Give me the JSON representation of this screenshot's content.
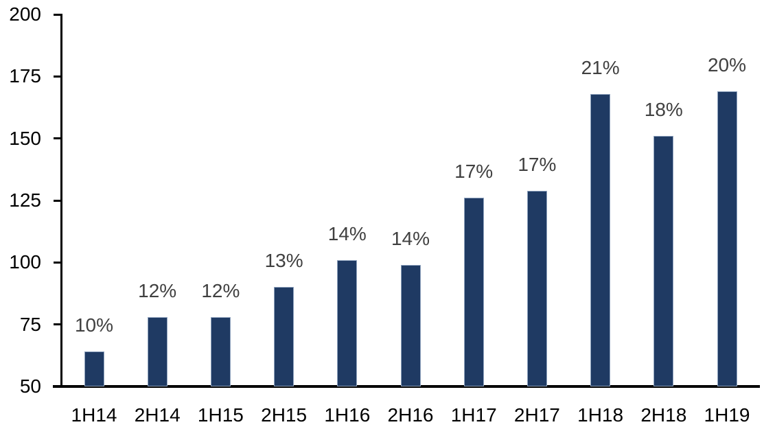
{
  "chart_data": {
    "type": "bar",
    "title": "",
    "xlabel": "",
    "ylabel": "",
    "categories": [
      "1H14",
      "2H14",
      "1H15",
      "2H15",
      "1H16",
      "2H16",
      "1H17",
      "2H17",
      "1H18",
      "2H18",
      "1H19"
    ],
    "values": [
      64,
      78,
      78,
      90,
      101,
      99,
      126,
      129,
      168,
      151,
      169
    ],
    "bar_labels": [
      "10%",
      "12%",
      "12%",
      "13%",
      "14%",
      "14%",
      "17%",
      "17%",
      "21%",
      "18%",
      "20%"
    ],
    "ylim": [
      50,
      200
    ],
    "yticks": [
      50,
      75,
      100,
      125,
      150,
      175,
      200
    ],
    "grid": false,
    "legend": null,
    "colors": {
      "bar_fill": "#1F3A63",
      "bar_border": "#8FA3BE",
      "data_label": "#404040",
      "axis": "#000000",
      "background": "#FFFFFF"
    }
  }
}
